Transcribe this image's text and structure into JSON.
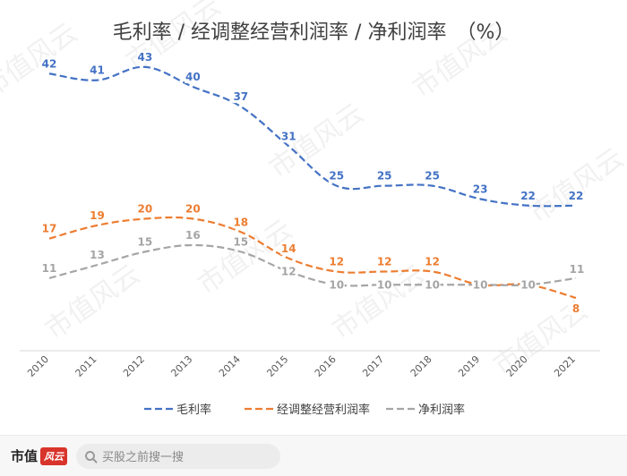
{
  "chart_data": {
    "type": "line",
    "title": "毛利率 / 经调整经营利润率 / 净利润率　（%）",
    "categories": [
      "2010",
      "2011",
      "2012",
      "2013",
      "2014",
      "2015",
      "2016",
      "2017",
      "2018",
      "2019",
      "2020",
      "2021"
    ],
    "series": [
      {
        "name": "毛利率",
        "color": "#4472C4",
        "values": [
          42,
          41,
          43,
          40,
          37,
          31,
          25,
          25,
          25,
          23,
          22,
          22
        ]
      },
      {
        "name": "经调整经营利润率",
        "color": "#ED7D31",
        "values": [
          17,
          19,
          20,
          20,
          18,
          14,
          12,
          12,
          12,
          10,
          10,
          8
        ]
      },
      {
        "name": "净利润率",
        "color": "#A5A5A5",
        "values": [
          11,
          13,
          15,
          16,
          15,
          12,
          10,
          10,
          10,
          10,
          10,
          11
        ]
      }
    ],
    "ylim": [
      0,
      48
    ],
    "grid": false,
    "legend_position": "bottom",
    "line_style": "dashed"
  },
  "watermark": "市值风云",
  "footer": {
    "brand": "市值",
    "brand_badge": "风云",
    "search_placeholder": "买股之前搜一搜"
  }
}
